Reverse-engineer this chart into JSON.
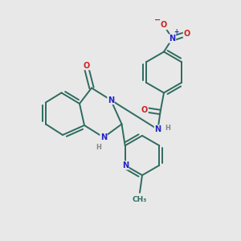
{
  "bg_color": "#e8e8e8",
  "bond_color": "#2d6b5e",
  "atom_colors": {
    "N": "#2222cc",
    "O": "#cc2222",
    "C": "#2d6b5e",
    "H": "#888888"
  }
}
